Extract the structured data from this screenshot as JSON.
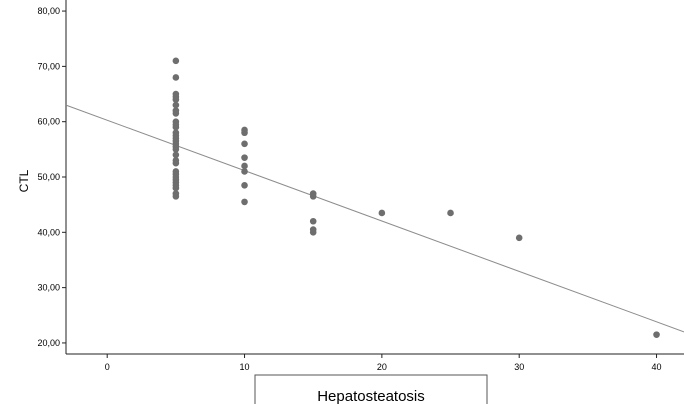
{
  "chart_data": {
    "type": "scatter",
    "title": "",
    "xlabel": "Hepatosteatosis",
    "ylabel": "CTL",
    "xlim": [
      -3,
      42
    ],
    "ylim": [
      18,
      82
    ],
    "x_ticks": [
      0,
      10,
      20,
      30,
      40
    ],
    "x_tick_labels": [
      "0",
      "10",
      "20",
      "30",
      "40"
    ],
    "y_ticks": [
      20,
      30,
      40,
      50,
      60,
      70,
      80
    ],
    "y_tick_labels": [
      "20,00",
      "30,00",
      "40,00",
      "50,00",
      "60,00",
      "70,00",
      "80,00"
    ],
    "grid": false,
    "legend": "none",
    "point_color": "#6e6e6e",
    "line_color": "#8c8c8c",
    "points": [
      [
        5,
        71
      ],
      [
        5,
        68
      ],
      [
        5,
        65
      ],
      [
        5,
        64.5
      ],
      [
        5,
        64
      ],
      [
        5,
        63
      ],
      [
        5,
        62
      ],
      [
        5,
        61.5
      ],
      [
        5,
        60
      ],
      [
        5,
        59.5
      ],
      [
        5,
        59
      ],
      [
        5,
        58
      ],
      [
        5,
        57.5
      ],
      [
        5,
        57
      ],
      [
        5,
        56.5
      ],
      [
        5,
        56
      ],
      [
        5,
        55.5
      ],
      [
        5,
        55
      ],
      [
        5,
        54
      ],
      [
        5,
        53
      ],
      [
        5,
        52.5
      ],
      [
        5,
        51
      ],
      [
        5,
        50.5
      ],
      [
        5,
        50
      ],
      [
        5,
        49.5
      ],
      [
        5,
        49
      ],
      [
        5,
        48.5
      ],
      [
        5,
        48
      ],
      [
        5,
        47
      ],
      [
        5,
        46.5
      ],
      [
        10,
        58.5
      ],
      [
        10,
        58
      ],
      [
        10,
        56
      ],
      [
        10,
        53.5
      ],
      [
        10,
        52
      ],
      [
        10,
        51
      ],
      [
        10,
        48.5
      ],
      [
        10,
        45.5
      ],
      [
        15,
        47
      ],
      [
        15,
        46.5
      ],
      [
        15,
        42
      ],
      [
        15,
        40.5
      ],
      [
        15,
        40
      ],
      [
        20,
        43.5
      ],
      [
        25,
        43.5
      ],
      [
        30,
        39
      ],
      [
        40,
        21.5
      ]
    ],
    "fit_line": {
      "x1": -3,
      "y1": 63,
      "x2": 42,
      "y2": 22
    }
  }
}
